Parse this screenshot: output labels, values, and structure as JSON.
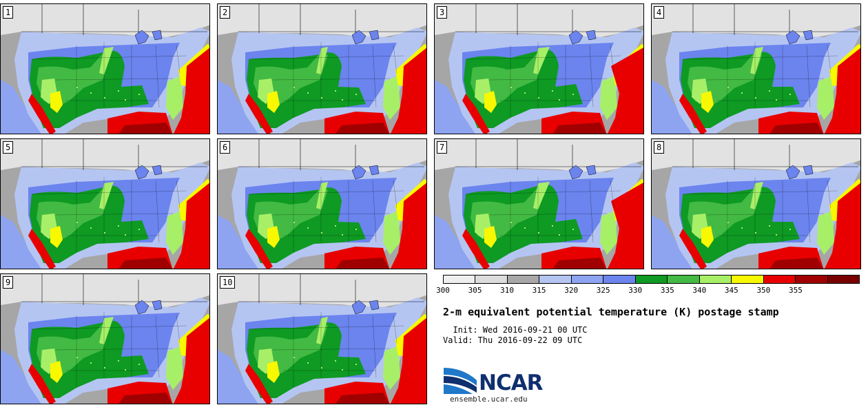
{
  "panels": [
    {
      "number": "1",
      "variant": 0
    },
    {
      "number": "2",
      "variant": 1
    },
    {
      "number": "3",
      "variant": 2
    },
    {
      "number": "4",
      "variant": 3
    },
    {
      "number": "5",
      "variant": 0
    },
    {
      "number": "6",
      "variant": 1
    },
    {
      "number": "7",
      "variant": 2
    },
    {
      "number": "8",
      "variant": 3
    },
    {
      "number": "9",
      "variant": 0
    },
    {
      "number": "10",
      "variant": 1
    }
  ],
  "colorbar": {
    "colors": [
      "#efefef",
      "#dcdcdc",
      "#a8a8a8",
      "#b5c5f2",
      "#8ea4f0",
      "#6b84ee",
      "#0e9a23",
      "#43ba43",
      "#a8ef68",
      "#f8f800",
      "#e80000",
      "#a00000",
      "#7a0000"
    ],
    "ticks": [
      "300",
      "305",
      "310",
      "315",
      "320",
      "325",
      "330",
      "335",
      "340",
      "345",
      "350",
      "355"
    ]
  },
  "title": "2-m equivalent potential temperature (K) postage stamp",
  "init_label": "  Init: Wed 2016-09-21 00 UTC",
  "valid_label": "Valid: Thu 2016-09-22 09 UTC",
  "logo_text": "NCAR",
  "site": "ensemble.ucar.edu",
  "map_colors": {
    "ocean_pac": "#a6a6a6",
    "pac_blue": "#8ea4f0",
    "canada": "#e2e2e2",
    "light_blue": "#b5c5f2",
    "mid_blue": "#6b84ee",
    "green_dark": "#0e9a23",
    "green_mid": "#43ba43",
    "green_light": "#a8ef68",
    "yellow": "#f8f800",
    "red": "#e80000",
    "dark_red": "#a00000"
  }
}
